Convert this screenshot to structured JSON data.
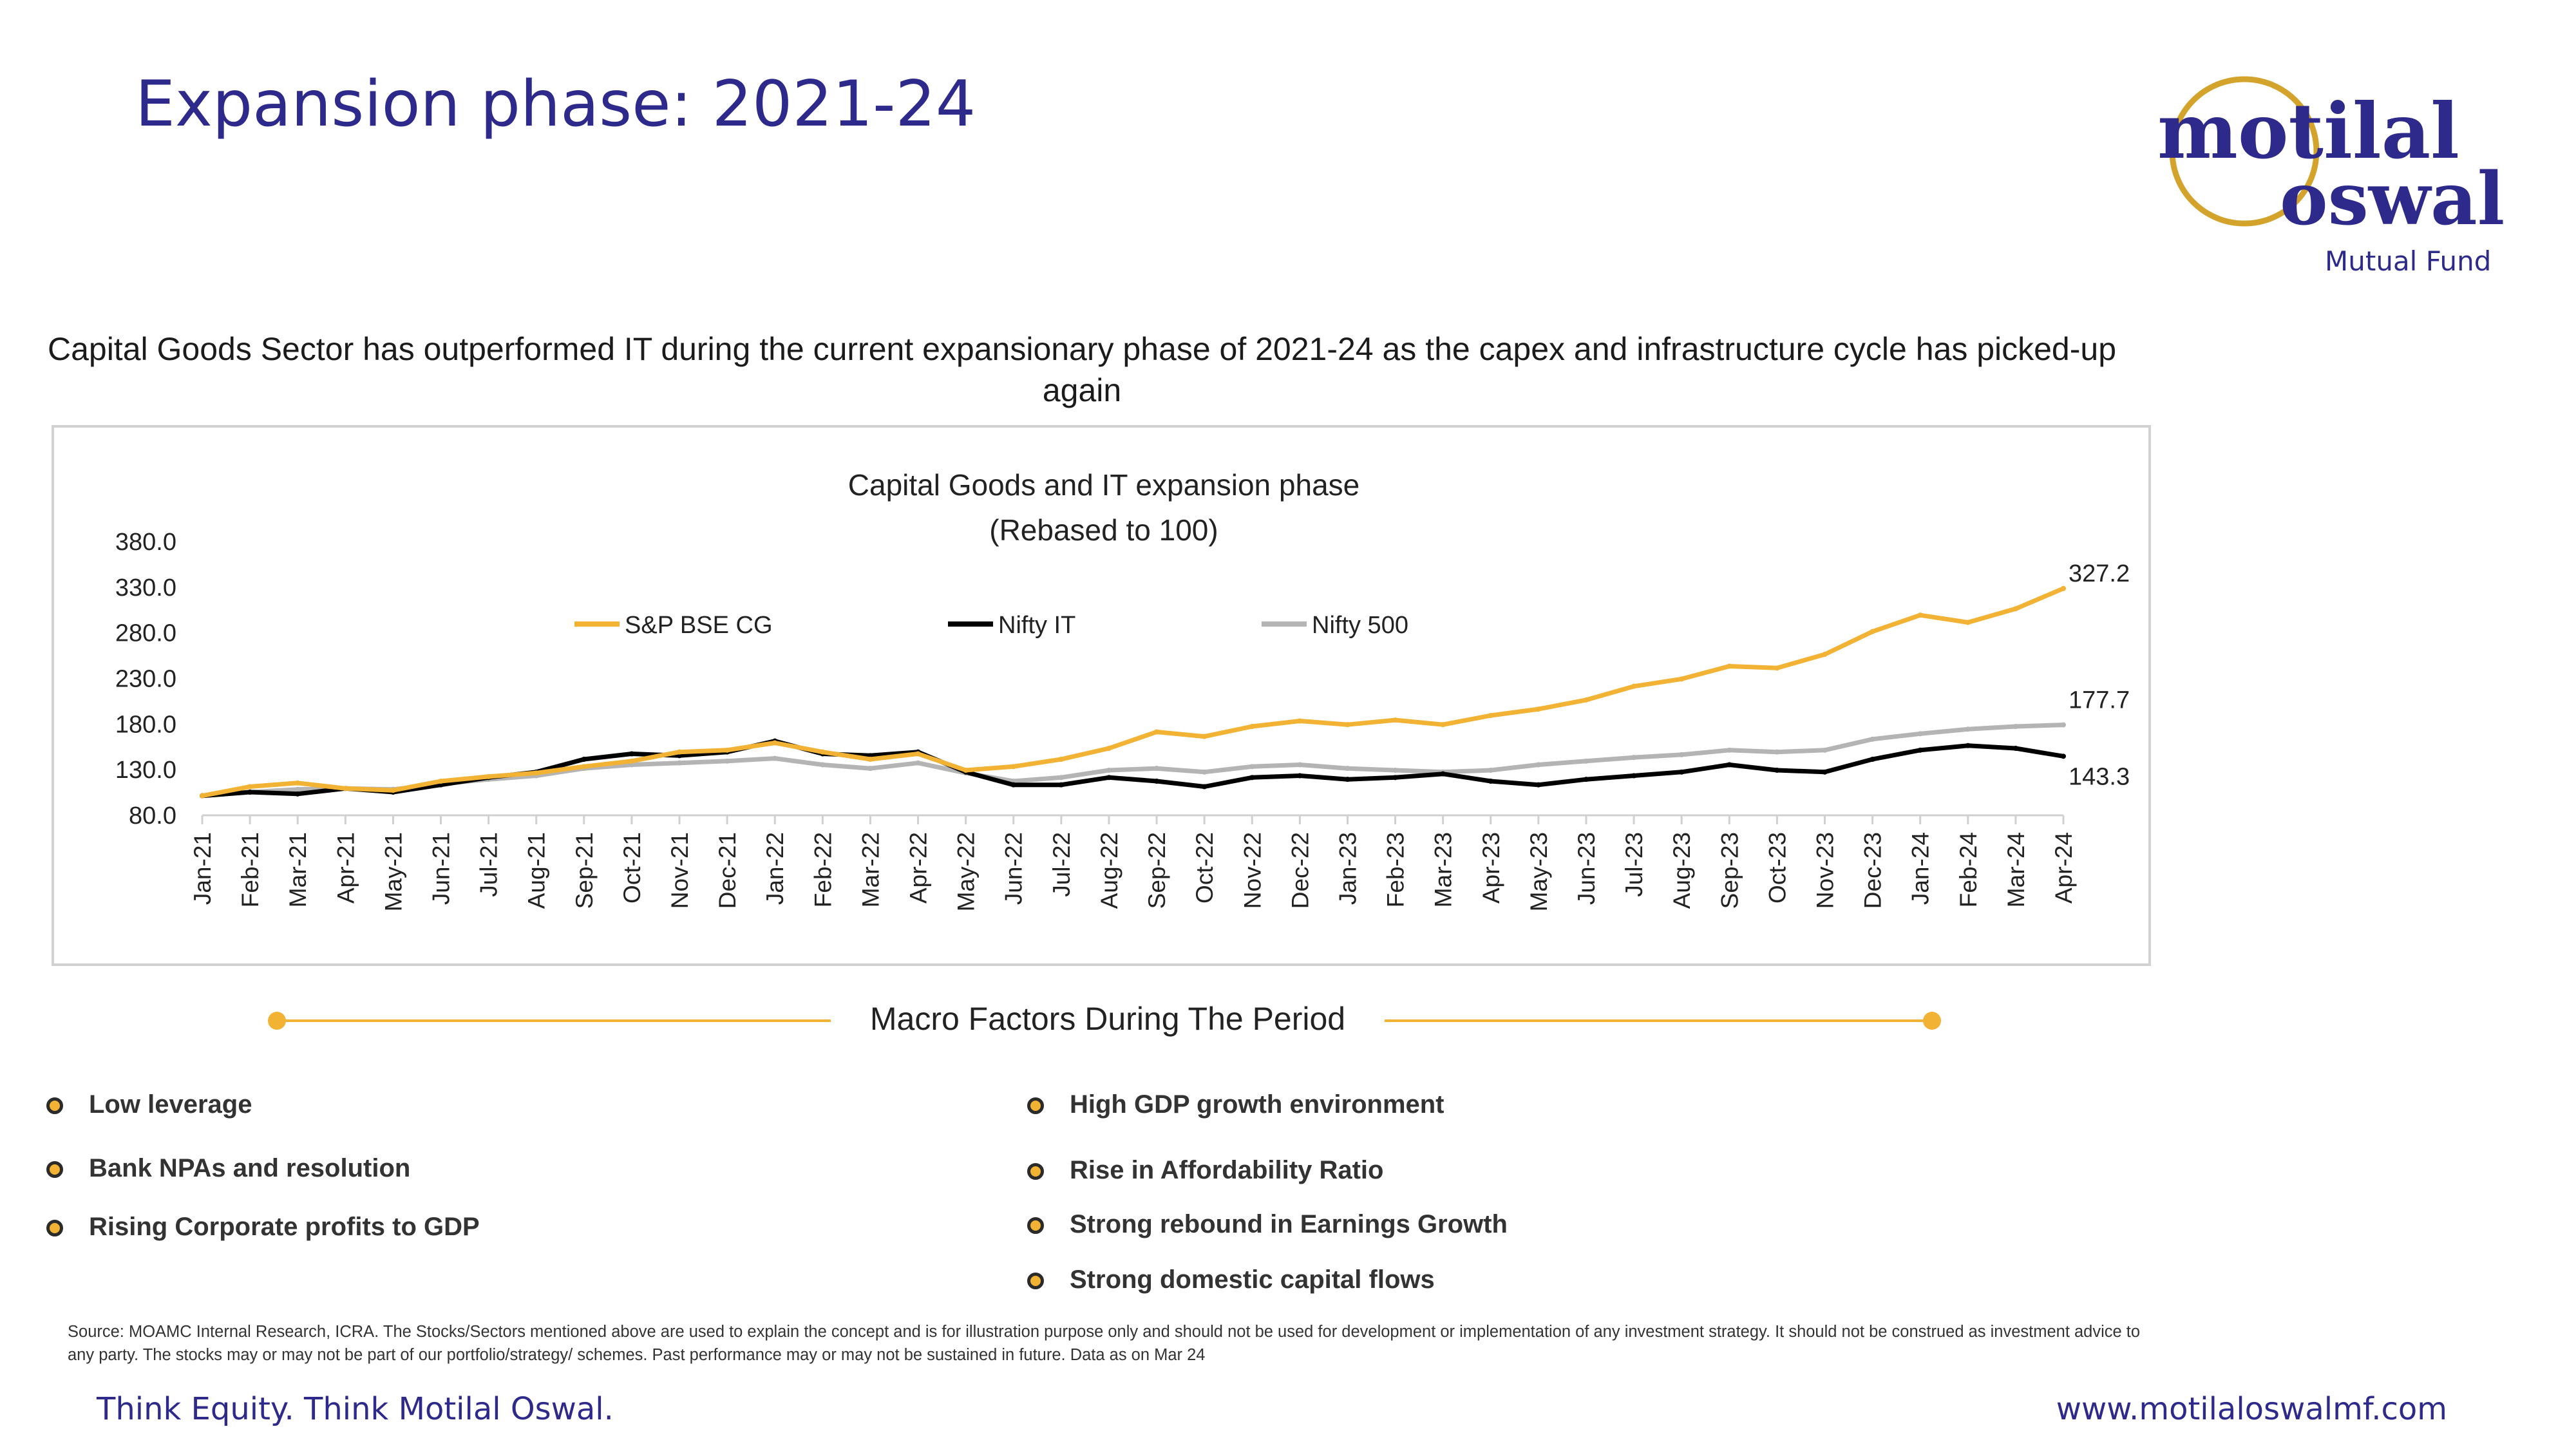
{
  "page": {
    "title": "Expansion phase: 2021-24",
    "subtitle": "Capital Goods Sector has outperformed IT during the current expansionary phase of 2021-24 as the capex and infrastructure cycle has picked-up again"
  },
  "logo": {
    "line1": "motilal",
    "line2": "oswal",
    "line3": "Mutual Fund"
  },
  "colors": {
    "title": "#2e2a8c",
    "bse_cg": "#f2b233",
    "nifty_it": "#000000",
    "nifty_500": "#b4b4b4",
    "accent": "#f2b233"
  },
  "chart_data": {
    "type": "line",
    "title": "Capital Goods and IT expansion phase",
    "subtitle": "(Rebased to 100)",
    "xlabel": "",
    "ylabel": "",
    "ylim": [
      80,
      380
    ],
    "yticks": [
      "380.0",
      "330.0",
      "280.0",
      "230.0",
      "180.0",
      "130.0",
      "80.0"
    ],
    "grid": false,
    "legend_position": "top",
    "categories": [
      "Jan-21",
      "Feb-21",
      "Mar-21",
      "Apr-21",
      "May-21",
      "Jun-21",
      "Jul-21",
      "Aug-21",
      "Sep-21",
      "Oct-21",
      "Nov-21",
      "Dec-21",
      "Jan-22",
      "Feb-22",
      "Mar-22",
      "Apr-22",
      "May-22",
      "Jun-22",
      "Jul-22",
      "Aug-22",
      "Sep-22",
      "Oct-22",
      "Nov-22",
      "Dec-22",
      "Jan-23",
      "Feb-23",
      "Mar-23",
      "Apr-23",
      "May-23",
      "Jun-23",
      "Jul-23",
      "Aug-23",
      "Sep-23",
      "Oct-23",
      "Nov-23",
      "Dec-23",
      "Jan-24",
      "Feb-24",
      "Mar-24",
      "Apr-24"
    ],
    "series": [
      {
        "name": "S&P BSE CG",
        "color": "#f2b233",
        "values": [
          100,
          110,
          114,
          108,
          106,
          116,
          121,
          125,
          132,
          138,
          148,
          150,
          158,
          148,
          140,
          146,
          128,
          132,
          140,
          152,
          170,
          165,
          176,
          182,
          178,
          183,
          178,
          188,
          195,
          205,
          220,
          228,
          242,
          240,
          255,
          280,
          298,
          290,
          305,
          327.2
        ]
      },
      {
        "name": "Nifty IT",
        "color": "#000000",
        "values": [
          100,
          104,
          102,
          108,
          104,
          112,
          120,
          126,
          140,
          146,
          144,
          148,
          160,
          146,
          144,
          148,
          126,
          112,
          112,
          120,
          116,
          110,
          120,
          122,
          118,
          120,
          124,
          116,
          112,
          118,
          122,
          126,
          134,
          128,
          126,
          140,
          150,
          155,
          152,
          143.3
        ]
      },
      {
        "name": "Nifty 500",
        "color": "#b4b4b4",
        "values": [
          100,
          104,
          107,
          108,
          107,
          113,
          118,
          122,
          130,
          134,
          136,
          138,
          141,
          134,
          130,
          136,
          125,
          116,
          120,
          128,
          130,
          126,
          132,
          134,
          130,
          128,
          126,
          128,
          134,
          138,
          142,
          145,
          150,
          148,
          150,
          162,
          168,
          173,
          176,
          177.7
        ]
      }
    ],
    "end_labels": [
      "327.2",
      "177.7",
      "143.3"
    ]
  },
  "macro": {
    "title": "Macro Factors During The Period",
    "left": [
      "Low leverage",
      "Bank NPAs and resolution",
      "Rising Corporate profits to GDP"
    ],
    "right": [
      "High GDP growth environment",
      "Rise in Affordability Ratio",
      "Strong rebound in Earnings Growth",
      "Strong domestic capital flows"
    ]
  },
  "source": "Source: MOAMC Internal Research, ICRA. The Stocks/Sectors mentioned above are used to explain the concept and is for illustration purpose only and should not be used for development or implementation of any investment strategy. It should not be construed as investment advice to any party. The stocks may or may not be part of our portfolio/strategy/ schemes. Past performance may or may not be sustained in future. Data as on Mar 24",
  "footer": {
    "tagline": "Think Equity. Think Motilal Oswal.",
    "website": "www.motilaloswalmf.com"
  }
}
